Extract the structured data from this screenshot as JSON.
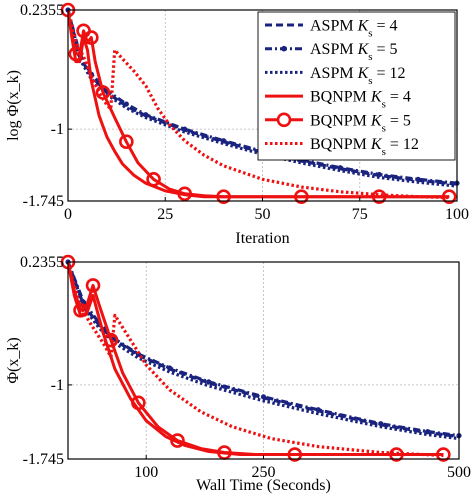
{
  "chart_data": [
    {
      "type": "line",
      "xlabel": "Iteration",
      "ylabel": "log Φ(x_k)",
      "xlim": [
        0,
        100
      ],
      "ylim": [
        -1.745,
        0.2355
      ],
      "xticks": [
        0,
        25,
        50,
        75,
        100
      ],
      "yticks": [
        {
          "value": 0.2355,
          "label": "0.2355"
        },
        {
          "value": -1,
          "label": "-1"
        },
        {
          "value": -1.745,
          "label": "-1.745"
        }
      ],
      "grid": true,
      "legend_position": "top-right",
      "series": [
        {
          "name": "ASPM K_s = 4",
          "color": "#1a237e",
          "dash": "dashed",
          "marker": "none",
          "x": [
            0,
            3,
            6,
            10,
            15,
            20,
            30,
            40,
            50,
            60,
            70,
            80,
            90,
            100
          ],
          "y": [
            0.2355,
            -0.25,
            -0.45,
            -0.62,
            -0.76,
            -0.86,
            -1.01,
            -1.13,
            -1.24,
            -1.33,
            -1.41,
            -1.48,
            -1.53,
            -1.57
          ]
        },
        {
          "name": "ASPM K_s = 5",
          "color": "#1a237e",
          "dash": "dashdot",
          "marker": "dot",
          "x": [
            0,
            3,
            6,
            10,
            15,
            20,
            30,
            40,
            50,
            60,
            70,
            80,
            90,
            100
          ],
          "y": [
            0.2355,
            -0.22,
            -0.43,
            -0.6,
            -0.74,
            -0.85,
            -1.0,
            -1.12,
            -1.23,
            -1.32,
            -1.4,
            -1.47,
            -1.52,
            -1.56
          ]
        },
        {
          "name": "ASPM K_s = 12",
          "color": "#1a237e",
          "dash": "dotted",
          "marker": "none",
          "x": [
            0,
            3,
            6,
            10,
            15,
            20,
            30,
            40,
            50,
            60,
            70,
            80,
            90,
            100
          ],
          "y": [
            0.2355,
            -0.27,
            -0.48,
            -0.64,
            -0.78,
            -0.88,
            -1.03,
            -1.15,
            -1.26,
            -1.35,
            -1.43,
            -1.5,
            -1.55,
            -1.59
          ]
        },
        {
          "name": "BQNPM K_s = 4",
          "color": "#ee1111",
          "dash": "solid",
          "marker": "none",
          "x": [
            0,
            1,
            2,
            3,
            4,
            5,
            6,
            8,
            10,
            12,
            14,
            17,
            20,
            25,
            30,
            35,
            40,
            50,
            60,
            70,
            80,
            90,
            98
          ],
          "y": [
            0.2355,
            -0.05,
            -0.3,
            -0.3,
            -0.05,
            -0.18,
            -0.5,
            -0.86,
            -1.08,
            -1.23,
            -1.36,
            -1.48,
            -1.56,
            -1.64,
            -1.68,
            -1.7,
            -1.7,
            -1.7,
            -1.7,
            -1.7,
            -1.7,
            -1.7,
            -1.7
          ]
        },
        {
          "name": "BQNPM K_s = 5",
          "color": "#ee1111",
          "dash": "solid",
          "marker": "circle",
          "x": [
            0,
            1,
            2,
            3,
            4,
            5,
            6,
            7,
            9,
            12,
            15,
            18,
            22,
            26,
            30,
            35,
            40,
            50,
            60,
            70,
            80,
            90,
            98
          ],
          "y": [
            0.2355,
            -0.04,
            -0.22,
            -0.22,
            0.02,
            -0.1,
            -0.05,
            -0.3,
            -0.62,
            -0.88,
            -1.13,
            -1.35,
            -1.52,
            -1.62,
            -1.67,
            -1.69,
            -1.7,
            -1.7,
            -1.7,
            -1.7,
            -1.7,
            -1.7,
            -1.7
          ]
        },
        {
          "name": "BQNPM K_s = 12",
          "color": "#ee1111",
          "dash": "dotted",
          "marker": "none",
          "x": [
            0,
            2,
            4,
            6,
            8,
            10,
            11,
            12,
            14,
            17,
            20,
            23,
            26,
            30,
            35,
            40,
            50,
            60,
            70,
            80,
            90,
            98
          ],
          "y": [
            0.2355,
            -0.1,
            -0.25,
            -0.45,
            -0.62,
            -0.75,
            -0.79,
            -0.18,
            -0.27,
            -0.4,
            -0.55,
            -0.78,
            -0.95,
            -1.12,
            -1.27,
            -1.38,
            -1.52,
            -1.6,
            -1.65,
            -1.68,
            -1.7,
            -1.71
          ]
        }
      ]
    },
    {
      "type": "line",
      "xlabel": "Wall Time (Seconds)",
      "ylabel": "Φ(x_k)",
      "xlim": [
        0,
        500
      ],
      "ylim": [
        -1.745,
        0.2355
      ],
      "xticks": [
        100,
        250,
        500
      ],
      "yticks": [
        {
          "value": 0.2355,
          "label": "0.2355"
        },
        {
          "value": -1,
          "label": "-1"
        },
        {
          "value": -1.745,
          "label": "-1.745"
        }
      ],
      "grid": true,
      "series": [
        {
          "name": "ASPM K_s = 4",
          "color": "#1a237e",
          "dash": "dashed",
          "marker": "none",
          "x": [
            0,
            20,
            40,
            60,
            90,
            130,
            180,
            250,
            320,
            400,
            460,
            500
          ],
          "y": [
            0.2355,
            -0.2,
            -0.4,
            -0.55,
            -0.7,
            -0.84,
            -0.98,
            -1.13,
            -1.26,
            -1.4,
            -1.48,
            -1.52
          ]
        },
        {
          "name": "ASPM K_s = 5",
          "color": "#1a237e",
          "dash": "dashdot",
          "marker": "dot",
          "x": [
            0,
            20,
            40,
            60,
            90,
            130,
            180,
            250,
            320,
            400,
            460,
            500
          ],
          "y": [
            0.2355,
            -0.17,
            -0.38,
            -0.54,
            -0.69,
            -0.83,
            -0.97,
            -1.12,
            -1.25,
            -1.39,
            -1.47,
            -1.51
          ]
        },
        {
          "name": "ASPM K_s = 12",
          "color": "#1a237e",
          "dash": "dotted",
          "marker": "none",
          "x": [
            0,
            20,
            40,
            60,
            90,
            130,
            180,
            250,
            320,
            400,
            460,
            500
          ],
          "y": [
            0.2355,
            -0.22,
            -0.43,
            -0.58,
            -0.73,
            -0.87,
            -1.01,
            -1.16,
            -1.29,
            -1.42,
            -1.5,
            -1.54
          ]
        },
        {
          "name": "BQNPM K_s = 4",
          "color": "#ee1111",
          "dash": "solid",
          "marker": "none",
          "x": [
            0,
            8,
            16,
            24,
            32,
            45,
            60,
            80,
            100,
            125,
            150,
            180,
            220,
            260,
            320,
            400,
            480
          ],
          "y": [
            0.2355,
            -0.1,
            -0.3,
            -0.28,
            -0.1,
            -0.48,
            -0.84,
            -1.14,
            -1.36,
            -1.52,
            -1.61,
            -1.67,
            -1.7,
            -1.7,
            -1.7,
            -1.7,
            -1.7
          ]
        },
        {
          "name": "BQNPM K_s = 5",
          "color": "#ee1111",
          "dash": "solid",
          "marker": "circle",
          "x": [
            0,
            8,
            16,
            24,
            32,
            40,
            55,
            70,
            90,
            115,
            140,
            170,
            200,
            240,
            290,
            350,
            420,
            480
          ],
          "y": [
            0.2355,
            -0.05,
            -0.25,
            -0.2,
            0.0,
            -0.2,
            -0.55,
            -0.88,
            -1.18,
            -1.42,
            -1.56,
            -1.64,
            -1.68,
            -1.7,
            -1.7,
            -1.7,
            -1.7,
            -1.7
          ]
        },
        {
          "name": "BQNPM K_s = 12",
          "color": "#ee1111",
          "dash": "dotted",
          "marker": "none",
          "x": [
            0,
            15,
            30,
            45,
            55,
            60,
            80,
            100,
            130,
            170,
            210,
            260,
            320,
            400,
            480
          ],
          "y": [
            0.2355,
            -0.2,
            -0.4,
            -0.58,
            -0.72,
            -0.3,
            -0.55,
            -0.8,
            -1.05,
            -1.27,
            -1.42,
            -1.54,
            -1.62,
            -1.68,
            -1.71
          ]
        }
      ]
    }
  ]
}
